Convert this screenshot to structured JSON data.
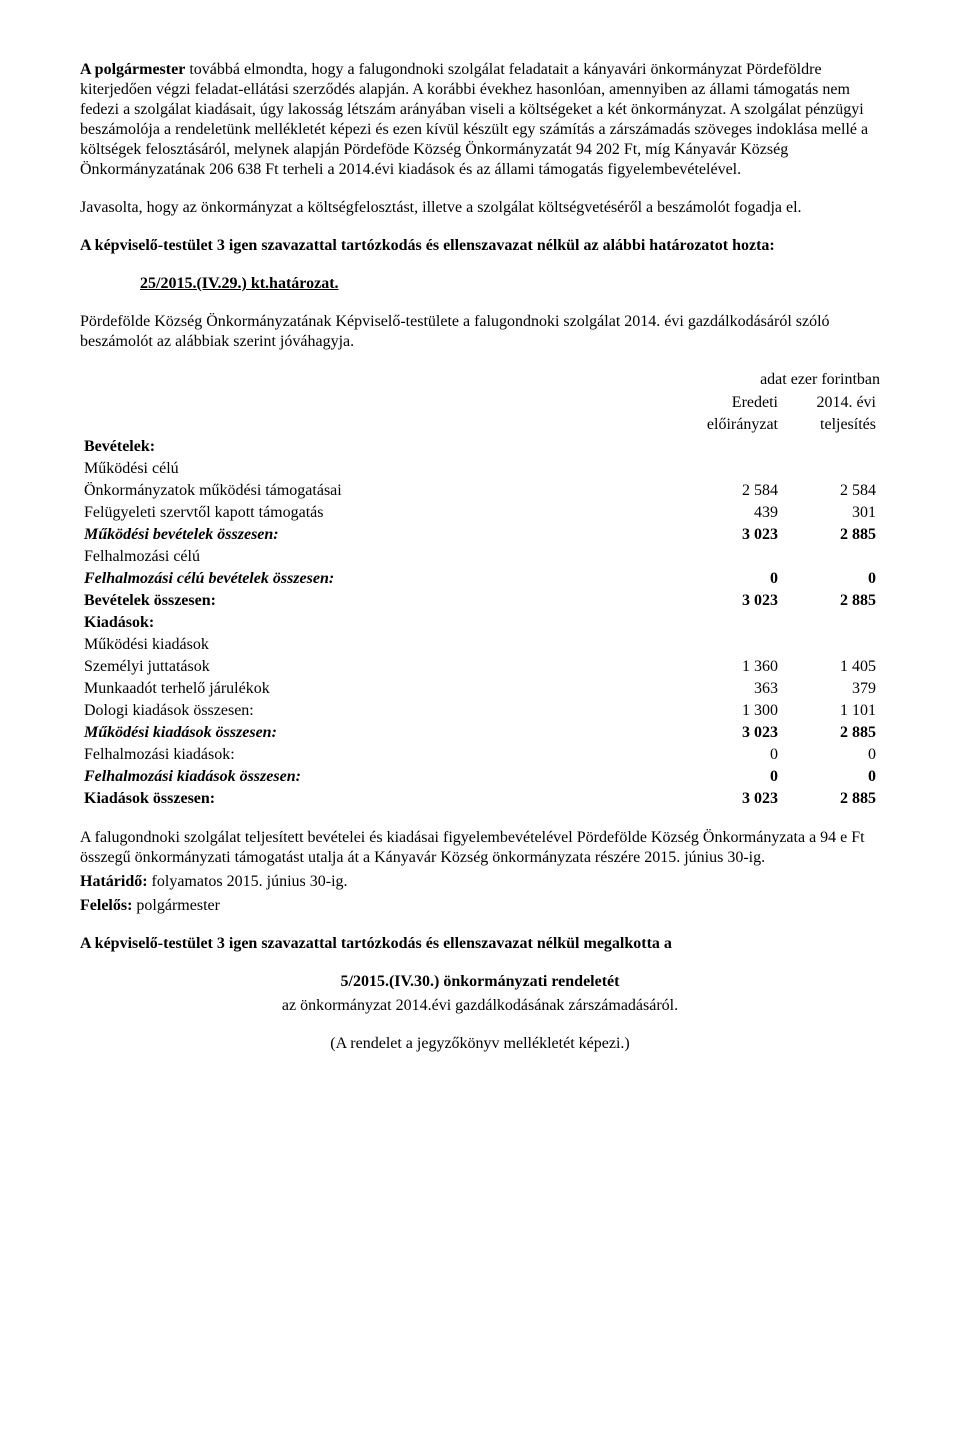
{
  "para1": "A polgármester továbbá elmondta, hogy a falugondnoki szolgálat feladatait a kányavári önkormányzat Pördeföldre kiterjedően végzi feladat-ellátási szerződés alapján. A korábbi évekhez hasonlóan, amennyiben az állami támogatás nem fedezi a szolgálat kiadásait, úgy lakosság létszám arányában viseli a költségeket a két önkormányzat. A szolgálat pénzügyi beszámolója a rendeletünk mellékletét képezi és ezen kívül készült egy számítás a zárszámadás szöveges indoklása mellé a költségek felosztásáról, melynek alapján Pördeföde Község Önkormányzatát 94 202 Ft, míg Kányavár Község Önkormányzatának 206 638 Ft  terheli a 2014.évi kiadások és az állami támogatás figyelembevételével.",
  "para2": "Javasolta, hogy az önkormányzat a költségfelosztást, illetve a szolgálat költségvetéséről a beszámolót fogadja el.",
  "resolution_intro1": "A képviselő-testület 3 igen szavazattal tartózkodás és ellenszavazat nélkül az alábbi határozatot hozta:",
  "resolution_number": "25/2015.(IV.29.) kt.határozat.",
  "resolution_body": "Pördefölde Község Önkormányzatának Képviselő-testülete a falugondnoki szolgálat 2014. évi gazdálkodásáról szóló beszámolót az alábbiak szerint jóváhagyja.",
  "unit_note": "adat ezer forintban",
  "col1_header_a": "Eredeti",
  "col1_header_b": "előirányzat",
  "col2_header_a": "2014. évi",
  "col2_header_b": "teljesítés",
  "rows": {
    "bevetelek_hdr": "Bevételek:",
    "muk_celu": "Működési célú",
    "r1_label": "Önkormányzatok működési támogatásai",
    "r1_v1": "2 584",
    "r1_v2": "2 584",
    "r2_label": "Felügyeleti szervtől kapott támogatás",
    "r2_v1": "439",
    "r2_v2": "301",
    "r3_label": "Működési bevételek összesen:",
    "r3_v1": "3 023",
    "r3_v2": "2 885",
    "felh_celu": "Felhalmozási célú",
    "r4_label": "Felhalmozási célú bevételek összesen:",
    "r4_v1": "0",
    "r4_v2": "0",
    "r5_label": "Bevételek összesen:",
    "r5_v1": "3 023",
    "r5_v2": "2 885",
    "kiadasok_hdr": "Kiadások:",
    "muk_kiad": "Működési kiadások",
    "r6_label": "Személyi juttatások",
    "r6_v1": "1 360",
    "r6_v2": "1 405",
    "r7_label": "Munkaadót terhelő járulékok",
    "r7_v1": "363",
    "r7_v2": "379",
    "r8_label": "Dologi kiadások összesen:",
    "r8_v1": "1 300",
    "r8_v2": "1 101",
    "r9_label": "Működési kiadások összesen:",
    "r9_v1": "3 023",
    "r9_v2": "2 885",
    "r10_label": "Felhalmozási kiadások:",
    "r10_v1": "0",
    "r10_v2": "0",
    "r11_label": "Felhalmozási kiadások összesen:",
    "r11_v1": "0",
    "r11_v2": "0",
    "r12_label": "Kiadások összesen:",
    "r12_v1": "3 023",
    "r12_v2": "2 885"
  },
  "closing_para": "A falugondnoki szolgálat teljesített bevételei és kiadásai figyelembevételével Pördefölde Község Önkormányzata a 94 e Ft összegű önkormányzati támogatást utalja át a Kányavár Község önkormányzata részére 2015. június 30-ig.",
  "hatarido_label": "Határidő:",
  "hatarido_value": " folyamatos 2015. június 30-ig.",
  "felelos_label": "Felelős:",
  "felelos_value": " polgármester",
  "resolution_intro2": "A képviselő-testület 3 igen szavazattal tartózkodás és ellenszavazat nélkül megalkotta a",
  "decree_number": "5/2015.(IV.30.) önkormányzati rendeletét",
  "decree_subject": "az önkormányzat 2014.évi gazdálkodásának zárszámadásáról.",
  "appendix_note": "(A rendelet a jegyzőkönyv mellékletét képezi.)"
}
